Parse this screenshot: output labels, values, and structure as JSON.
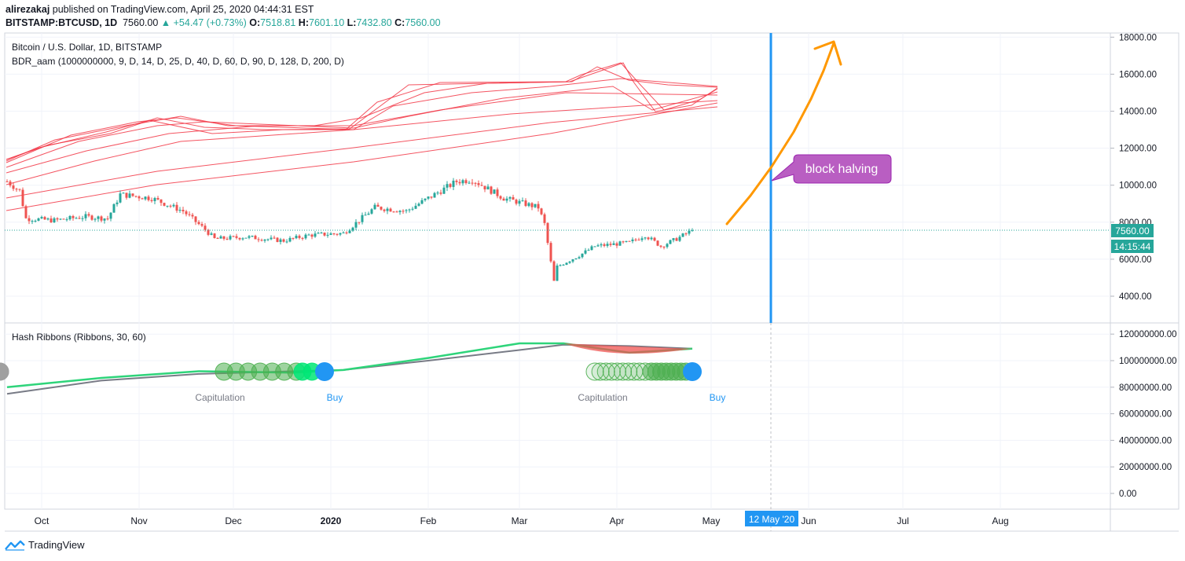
{
  "header": {
    "author": "alirezakaj",
    "published_text": "published on TradingView.com, April 25, 2020 04:44:31 EST",
    "symbol": "BITSTAMP:BTCUSD, 1D",
    "last": "7560.00",
    "change": "+54.47 (+0.73%)",
    "o_label": "O:",
    "o_value": "7518.81",
    "h_label": "H:",
    "h_value": "7601.10",
    "l_label": "L:",
    "l_value": "7432.80",
    "c_label": "C:",
    "c_value": "7560.00"
  },
  "main_pane": {
    "legend_title": "Bitcoin / U.S. Dollar, 1D, BITSTAMP",
    "indicator": "BDR_aam (1000000000, 9, D, 14, D, 25, D, 40, D, 60, D, 90, D, 128, D, 200, D)",
    "price_badge": "7560.00",
    "countdown_badge": "14:15:44",
    "annotation": "block halving"
  },
  "sub_pane": {
    "legend_title": "Hash Ribbons (Ribbons, 30, 60)",
    "labels": [
      "Capitulation",
      "Buy",
      "Capitulation",
      "Buy"
    ]
  },
  "time_axis": {
    "labels": [
      "Oct",
      "Nov",
      "Dec",
      "2020",
      "Feb",
      "Mar",
      "Apr",
      "May",
      "Jun",
      "Jul",
      "Aug"
    ],
    "highlight": "12 May '20"
  },
  "footer": {
    "brand": "TradingView"
  },
  "colors": {
    "bull": "#26a69a",
    "bear": "#ef5350",
    "ribbon": "#f23645",
    "halving_line": "#2196f3",
    "arrow": "#ff9800",
    "annotation_bg": "#b95ec2",
    "hash_fast": "#2ed47a",
    "hash_slow": "#787b86"
  },
  "chart_data": [
    {
      "type": "candlestick",
      "title": "Bitcoin / U.S. Dollar, 1D, BITSTAMP",
      "y_ticks": [
        "4000.00",
        "6000.00",
        "8000.00",
        "10000.00",
        "12000.00",
        "14000.00",
        "16000.00",
        "18000.00"
      ],
      "ylim": [
        2500,
        18200
      ],
      "x": [
        "2019-09-20",
        "2019-09-24",
        "2019-09-26",
        "2019-10-05",
        "2019-10-15",
        "2019-10-22",
        "2019-10-26",
        "2019-11-05",
        "2019-11-15",
        "2019-11-22",
        "2019-11-25",
        "2019-12-05",
        "2019-12-17",
        "2019-12-25",
        "2020-01-05",
        "2020-01-15",
        "2020-01-25",
        "2020-02-10",
        "2020-02-15",
        "2020-02-25",
        "2020-03-07",
        "2020-03-09",
        "2020-03-12",
        "2020-03-13",
        "2020-03-20",
        "2020-03-25",
        "2020-04-05",
        "2020-04-10",
        "2020-04-15",
        "2020-04-20",
        "2020-04-25"
      ],
      "close": [
        10200,
        9700,
        8200,
        8100,
        8300,
        8200,
        9500,
        9300,
        8600,
        7600,
        7100,
        7200,
        7000,
        7300,
        7400,
        8800,
        8600,
        10200,
        10300,
        9300,
        8800,
        7900,
        4800,
        5600,
        6200,
        6700,
        6900,
        7300,
        6700,
        7100,
        7560
      ],
      "annotations": [
        {
          "x": "2020-05-12",
          "label": "block halving",
          "kind": "vertical-line"
        },
        {
          "label": "projected move",
          "kind": "arrow",
          "from": [
            "2020-04-27",
            7700
          ],
          "to": [
            "2020-06-02",
            17500
          ]
        }
      ]
    },
    {
      "type": "line",
      "title": "Hash Ribbons (Ribbons, 30, 60)",
      "y_ticks": [
        "0.00",
        "20000000.00",
        "40000000.00",
        "60000000.00",
        "80000000.00",
        "100000000.00",
        "120000000.00"
      ],
      "ylim": [
        -10000000,
        127000000
      ],
      "x": [
        "2019-09-20",
        "2019-10-20",
        "2019-11-20",
        "2019-12-20",
        "2020-01-05",
        "2020-02-01",
        "2020-03-01",
        "2020-03-15",
        "2020-04-05",
        "2020-04-25"
      ],
      "series": [
        {
          "values": [
            80000000,
            87000000,
            92000000,
            91000000,
            93000000,
            102000000,
            113000000,
            113000000,
            106000000,
            109000000
          ]
        },
        {
          "values": [
            75000000,
            85000000,
            90000000,
            92000000,
            93000000,
            100000000,
            108000000,
            112000000,
            111000000,
            109000000
          ]
        }
      ],
      "annotations": [
        {
          "label": "Capitulation",
          "x": "2019-11-21"
        },
        {
          "label": "Buy",
          "x": "2019-12-30"
        },
        {
          "label": "Capitulation",
          "x": "2020-03-22"
        },
        {
          "label": "Buy",
          "x": "2020-04-25"
        }
      ]
    }
  ]
}
